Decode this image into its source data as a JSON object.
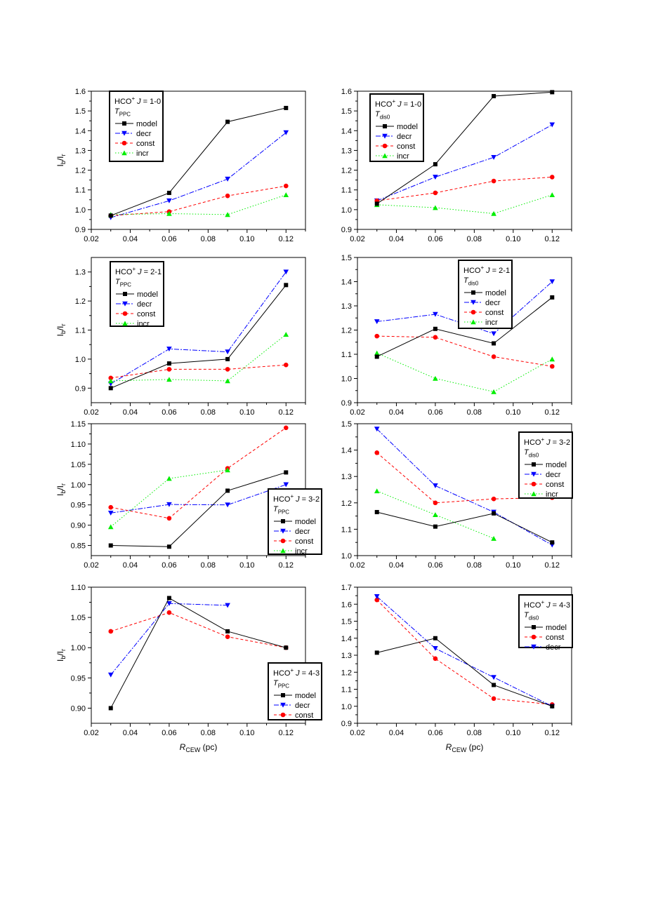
{
  "chart_data": [
    {
      "type": "line",
      "panel": "hco-1-0-ppc",
      "legend_title": "HCO⁺ J = 1-0",
      "legend_t_sub": "PPC",
      "legend_position": "top-left",
      "ylabel": "I_b/I_r",
      "xlabel": "",
      "x": [
        0.03,
        0.06,
        0.09,
        0.12
      ],
      "xlim": [
        0.02,
        0.13
      ],
      "ylim": [
        0.9,
        1.6
      ],
      "yticks": [
        0.9,
        1.0,
        1.1,
        1.2,
        1.3,
        1.4,
        1.5,
        1.6
      ],
      "series": [
        {
          "name": "model",
          "values": [
            0.97,
            1.085,
            1.445,
            1.515
          ]
        },
        {
          "name": "decr",
          "values": [
            0.96,
            1.045,
            1.155,
            1.39
          ]
        },
        {
          "name": "const",
          "values": [
            0.97,
            0.99,
            1.07,
            1.12
          ]
        },
        {
          "name": "incr",
          "values": [
            0.975,
            0.98,
            0.975,
            1.075
          ]
        }
      ]
    },
    {
      "type": "line",
      "panel": "hco-1-0-dis0",
      "legend_title": "HCO⁺ J = 1-0",
      "legend_t_sub": "dis0",
      "legend_position": "top-left",
      "ylabel": "",
      "xlabel": "",
      "x": [
        0.03,
        0.06,
        0.09,
        0.12
      ],
      "xlim": [
        0.02,
        0.13
      ],
      "ylim": [
        0.9,
        1.6
      ],
      "yticks": [
        0.9,
        1.0,
        1.1,
        1.2,
        1.3,
        1.4,
        1.5,
        1.6
      ],
      "series": [
        {
          "name": "model",
          "values": [
            1.03,
            1.23,
            1.575,
            1.595
          ]
        },
        {
          "name": "decr",
          "values": [
            1.045,
            1.165,
            1.265,
            1.43
          ]
        },
        {
          "name": "const",
          "values": [
            1.045,
            1.085,
            1.145,
            1.165
          ]
        },
        {
          "name": "incr",
          "values": [
            1.025,
            1.01,
            0.98,
            1.075
          ]
        }
      ]
    },
    {
      "type": "line",
      "panel": "hco-2-1-ppc",
      "legend_title": "HCO⁺ J = 2-1",
      "legend_t_sub": "PPC",
      "legend_position": "top-left",
      "ylabel": "I_b/I_r",
      "xlabel": "",
      "x": [
        0.03,
        0.06,
        0.09,
        0.12
      ],
      "xlim": [
        0.02,
        0.13
      ],
      "ylim": [
        0.85,
        1.35
      ],
      "yticks": [
        0.9,
        1.0,
        1.1,
        1.2,
        1.3
      ],
      "series": [
        {
          "name": "model",
          "values": [
            0.9,
            0.985,
            1.0,
            1.255
          ]
        },
        {
          "name": "decr",
          "values": [
            0.915,
            1.035,
            1.025,
            1.3
          ]
        },
        {
          "name": "const",
          "values": [
            0.935,
            0.965,
            0.965,
            0.98
          ]
        },
        {
          "name": "incr",
          "values": [
            0.925,
            0.93,
            0.925,
            1.085
          ]
        }
      ]
    },
    {
      "type": "line",
      "panel": "hco-2-1-dis0",
      "legend_title": "HCO⁺ J = 2-1",
      "legend_t_sub": "dis0",
      "legend_position": "top-center",
      "ylabel": "",
      "xlabel": "",
      "x": [
        0.03,
        0.06,
        0.09,
        0.12
      ],
      "xlim": [
        0.02,
        0.13
      ],
      "ylim": [
        0.9,
        1.5
      ],
      "yticks": [
        0.9,
        1.0,
        1.1,
        1.2,
        1.3,
        1.4,
        1.5
      ],
      "series": [
        {
          "name": "model",
          "values": [
            1.09,
            1.205,
            1.145,
            1.335
          ]
        },
        {
          "name": "decr",
          "values": [
            1.235,
            1.265,
            1.185,
            1.4
          ]
        },
        {
          "name": "const",
          "values": [
            1.175,
            1.17,
            1.09,
            1.05
          ]
        },
        {
          "name": "incr",
          "values": [
            1.105,
            1.0,
            0.945,
            1.08
          ]
        }
      ]
    },
    {
      "type": "line",
      "panel": "hco-3-2-ppc",
      "legend_title": "HCO⁺ J = 3-2",
      "legend_t_sub": "PPC",
      "legend_position": "bottom-right",
      "ylabel": "I_b/I_r",
      "xlabel": "",
      "x": [
        0.03,
        0.06,
        0.09,
        0.12
      ],
      "xlim": [
        0.02,
        0.13
      ],
      "ylim": [
        0.825,
        1.15
      ],
      "yticks": [
        0.85,
        0.9,
        0.95,
        1.0,
        1.05,
        1.1,
        1.15
      ],
      "series": [
        {
          "name": "model",
          "values": [
            0.85,
            0.847,
            0.985,
            1.03
          ]
        },
        {
          "name": "decr",
          "values": [
            0.93,
            0.951,
            0.95,
            1.0
          ]
        },
        {
          "name": "const",
          "values": [
            0.944,
            0.917,
            1.04,
            1.14
          ]
        },
        {
          "name": "incr",
          "values": [
            0.896,
            1.015,
            1.036,
            null
          ]
        }
      ]
    },
    {
      "type": "line",
      "panel": "hco-3-2-dis0",
      "legend_title": "HCO⁺ J = 3-2",
      "legend_t_sub": "dis0",
      "legend_position": "top-right",
      "ylabel": "",
      "xlabel": "",
      "x": [
        0.03,
        0.06,
        0.09,
        0.12
      ],
      "xlim": [
        0.02,
        0.13
      ],
      "ylim": [
        1.0,
        1.5
      ],
      "yticks": [
        1.0,
        1.1,
        1.2,
        1.3,
        1.4,
        1.5
      ],
      "series": [
        {
          "name": "model",
          "values": [
            1.165,
            1.11,
            1.16,
            1.05
          ]
        },
        {
          "name": "decr",
          "values": [
            1.48,
            1.265,
            1.165,
            1.04
          ]
        },
        {
          "name": "const",
          "values": [
            1.39,
            1.2,
            1.215,
            1.22
          ]
        },
        {
          "name": "incr",
          "values": [
            1.245,
            1.155,
            1.065,
            null
          ]
        }
      ]
    },
    {
      "type": "line",
      "panel": "hco-4-3-ppc",
      "legend_title": "HCO⁺ J = 4-3",
      "legend_t_sub": "PPC",
      "legend_position": "bottom-right",
      "ylabel": "I_b/I_r",
      "xlabel": "R_CEW (pc)",
      "x": [
        0.03,
        0.06,
        0.09,
        0.12
      ],
      "xlim": [
        0.02,
        0.13
      ],
      "ylim": [
        0.875,
        1.1
      ],
      "yticks": [
        0.9,
        0.95,
        1.0,
        1.05,
        1.1
      ],
      "series": [
        {
          "name": "model",
          "values": [
            0.9,
            1.082,
            1.027,
            1.0
          ]
        },
        {
          "name": "decr",
          "values": [
            0.955,
            1.073,
            1.07,
            null
          ]
        },
        {
          "name": "const",
          "values": [
            1.027,
            1.058,
            1.018,
            1.0
          ]
        }
      ]
    },
    {
      "type": "line",
      "panel": "hco-4-3-dis0",
      "legend_title": "HCO⁺ J = 4-3",
      "legend_t_sub": "dis0",
      "legend_position": "top-right",
      "ylabel": "",
      "xlabel": "R_CEW (pc)",
      "x": [
        0.03,
        0.06,
        0.09,
        0.12
      ],
      "xlim": [
        0.02,
        0.13
      ],
      "ylim": [
        0.9,
        1.7
      ],
      "yticks": [
        0.9,
        1.0,
        1.1,
        1.2,
        1.3,
        1.4,
        1.5,
        1.6,
        1.7
      ],
      "series": [
        {
          "name": "model",
          "values": [
            1.315,
            1.4,
            1.125,
            1.0
          ]
        },
        {
          "name": "const",
          "values": [
            1.625,
            1.28,
            1.045,
            1.01
          ]
        },
        {
          "name": "decr",
          "values": [
            1.645,
            1.34,
            1.17,
            1.0
          ]
        }
      ]
    }
  ],
  "xticks": [
    0.02,
    0.04,
    0.06,
    0.08,
    0.1,
    0.12
  ],
  "xtick_labels": [
    "0.02",
    "0.04",
    "0.06",
    "0.08",
    "0.10",
    "0.12"
  ],
  "ylabel_main": "I",
  "ylabel_sub_b": "b",
  "ylabel_sub_r": "r",
  "xlabel_main": "R",
  "xlabel_sub": "CEW",
  "xlabel_unit": " (pc)",
  "legend_species": "HCO",
  "legend_charge": "+",
  "legend_j": "J",
  "legend_trans_prefix": " = ",
  "legend_t": "T",
  "series_styles": {
    "model": {
      "color": "#000000",
      "marker": "square",
      "dash": ""
    },
    "decr": {
      "color": "#0000ff",
      "marker": "triangle-down",
      "dash": "7,2,2,2"
    },
    "const": {
      "color": "#ff0000",
      "marker": "circle",
      "dash": "4,3"
    },
    "incr": {
      "color": "#00ee00",
      "marker": "triangle-up",
      "dash": "1.5,2.5"
    }
  }
}
